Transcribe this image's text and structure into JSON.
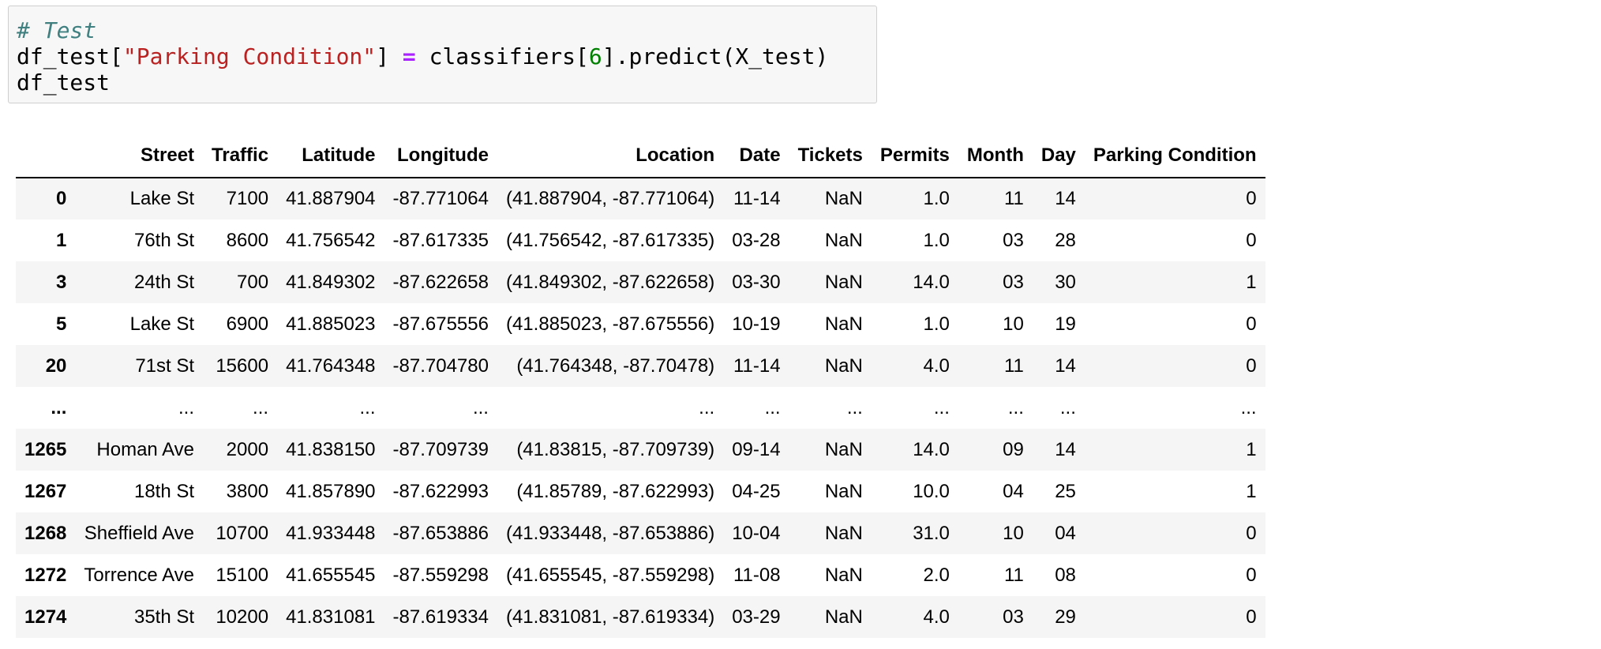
{
  "code": {
    "comment": "# Test",
    "line2": {
      "p1": "df_test[",
      "str": "\"Parking Condition\"",
      "p2": "] ",
      "op": "=",
      "p3": " classifiers[",
      "num": "6",
      "p4": "].predict(X_test)"
    },
    "line3": "df_test"
  },
  "table": {
    "columns": [
      "",
      "Street",
      "Traffic",
      "Latitude",
      "Longitude",
      "Location",
      "Date",
      "Tickets",
      "Permits",
      "Month",
      "Day",
      "Parking Condition"
    ],
    "rows": [
      [
        "0",
        "Lake St",
        "7100",
        "41.887904",
        "-87.771064",
        "(41.887904, -87.771064)",
        "11-14",
        "NaN",
        "1.0",
        "11",
        "14",
        "0"
      ],
      [
        "1",
        "76th St",
        "8600",
        "41.756542",
        "-87.617335",
        "(41.756542, -87.617335)",
        "03-28",
        "NaN",
        "1.0",
        "03",
        "28",
        "0"
      ],
      [
        "3",
        "24th St",
        "700",
        "41.849302",
        "-87.622658",
        "(41.849302, -87.622658)",
        "03-30",
        "NaN",
        "14.0",
        "03",
        "30",
        "1"
      ],
      [
        "5",
        "Lake St",
        "6900",
        "41.885023",
        "-87.675556",
        "(41.885023, -87.675556)",
        "10-19",
        "NaN",
        "1.0",
        "10",
        "19",
        "0"
      ],
      [
        "20",
        "71st St",
        "15600",
        "41.764348",
        "-87.704780",
        "(41.764348, -87.70478)",
        "11-14",
        "NaN",
        "4.0",
        "11",
        "14",
        "0"
      ],
      [
        "...",
        "...",
        "...",
        "...",
        "...",
        "...",
        "...",
        "...",
        "...",
        "...",
        "...",
        "..."
      ],
      [
        "1265",
        "Homan Ave",
        "2000",
        "41.838150",
        "-87.709739",
        "(41.83815, -87.709739)",
        "09-14",
        "NaN",
        "14.0",
        "09",
        "14",
        "1"
      ],
      [
        "1267",
        "18th St",
        "3800",
        "41.857890",
        "-87.622993",
        "(41.85789, -87.622993)",
        "04-25",
        "NaN",
        "10.0",
        "04",
        "25",
        "1"
      ],
      [
        "1268",
        "Sheffield Ave",
        "10700",
        "41.933448",
        "-87.653886",
        "(41.933448, -87.653886)",
        "10-04",
        "NaN",
        "31.0",
        "10",
        "04",
        "0"
      ],
      [
        "1272",
        "Torrence Ave",
        "15100",
        "41.655545",
        "-87.559298",
        "(41.655545, -87.559298)",
        "11-08",
        "NaN",
        "2.0",
        "11",
        "08",
        "0"
      ],
      [
        "1274",
        "35th St",
        "10200",
        "41.831081",
        "-87.619334",
        "(41.831081, -87.619334)",
        "03-29",
        "NaN",
        "4.0",
        "03",
        "29",
        "0"
      ]
    ]
  }
}
